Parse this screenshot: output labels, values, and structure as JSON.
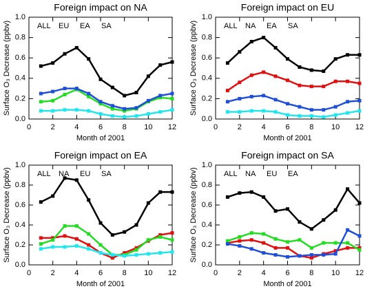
{
  "chart_data": [
    {
      "type": "line",
      "title": "Foreign impact on NA",
      "xlabel": "Month of 2001",
      "ylabel": "Surface O₃ Decrease (ppbv)",
      "x": [
        1,
        2,
        3,
        4,
        5,
        6,
        7,
        8,
        9,
        10,
        11,
        12
      ],
      "xlim": [
        0,
        12
      ],
      "xticks": [
        0,
        2,
        4,
        6,
        8,
        10,
        12
      ],
      "ylim": [
        0,
        1
      ],
      "yticks": [
        {
          "value": 0,
          "label": "0.0"
        },
        0.2,
        0.4,
        0.6,
        0.8,
        {
          "value": 1,
          "label": "1.0"
        }
      ],
      "series": [
        {
          "name": "ALL",
          "color": "#000000",
          "values": [
            0.52,
            0.55,
            0.64,
            0.7,
            0.59,
            0.39,
            0.31,
            0.23,
            0.26,
            0.42,
            0.53,
            0.56
          ]
        },
        {
          "name": "EU",
          "color": "#22dd22",
          "values": [
            0.17,
            0.18,
            0.24,
            0.29,
            0.22,
            0.15,
            0.1,
            0.08,
            0.1,
            0.17,
            0.21,
            0.2
          ]
        },
        {
          "name": "EA",
          "color": "#1f4fd6",
          "values": [
            0.25,
            0.27,
            0.3,
            0.3,
            0.25,
            0.17,
            0.13,
            0.1,
            0.11,
            0.18,
            0.23,
            0.25
          ]
        },
        {
          "name": "SA",
          "color": "#22e6ee",
          "values": [
            0.08,
            0.08,
            0.09,
            0.09,
            0.08,
            0.05,
            0.03,
            0.02,
            0.03,
            0.05,
            0.07,
            0.09
          ]
        }
      ]
    },
    {
      "type": "line",
      "title": "Foreign impact on EU",
      "xlabel": "Month of 2001",
      "ylabel": "Surface O₃ Decrease (ppbv)",
      "x": [
        1,
        2,
        3,
        4,
        5,
        6,
        7,
        8,
        9,
        10,
        11,
        12
      ],
      "xlim": [
        0,
        12
      ],
      "xticks": [
        0,
        2,
        4,
        6,
        8,
        10,
        12
      ],
      "ylim": [
        0,
        1
      ],
      "yticks": [
        {
          "value": 0,
          "label": "0.0"
        },
        0.2,
        0.4,
        0.6,
        0.8,
        {
          "value": 1,
          "label": "1.0"
        }
      ],
      "series": [
        {
          "name": "ALL",
          "color": "#000000",
          "values": [
            0.55,
            0.66,
            0.76,
            0.8,
            0.7,
            0.59,
            0.51,
            0.48,
            0.47,
            0.59,
            0.63,
            0.63
          ]
        },
        {
          "name": "NA",
          "color": "#e01010",
          "values": [
            0.28,
            0.36,
            0.43,
            0.46,
            0.42,
            0.38,
            0.33,
            0.32,
            0.32,
            0.37,
            0.37,
            0.35
          ]
        },
        {
          "name": "EA",
          "color": "#1f4fd6",
          "values": [
            0.17,
            0.2,
            0.22,
            0.23,
            0.19,
            0.15,
            0.12,
            0.09,
            0.09,
            0.12,
            0.17,
            0.18
          ]
        },
        {
          "name": "SA",
          "color": "#22e6ee",
          "values": [
            0.07,
            0.07,
            0.08,
            0.08,
            0.07,
            0.04,
            0.03,
            0.03,
            0.02,
            0.04,
            0.06,
            0.08
          ]
        }
      ]
    },
    {
      "type": "line",
      "title": "Foreign impact on EA",
      "xlabel": "Month of 2001",
      "ylabel": "Surface O₃ Decrease (ppbv)",
      "x": [
        1,
        2,
        3,
        4,
        5,
        6,
        7,
        8,
        9,
        10,
        11,
        12
      ],
      "xlim": [
        0,
        12
      ],
      "xticks": [
        0,
        2,
        4,
        6,
        8,
        10,
        12
      ],
      "ylim": [
        0,
        1
      ],
      "yticks": [
        {
          "value": 0,
          "label": "0.0"
        },
        0.2,
        0.4,
        0.6,
        0.8,
        {
          "value": 1,
          "label": "1.0"
        }
      ],
      "series": [
        {
          "name": "ALL",
          "color": "#000000",
          "values": [
            0.63,
            0.69,
            0.87,
            0.85,
            0.65,
            0.42,
            0.3,
            0.33,
            0.4,
            0.62,
            0.73,
            0.73
          ]
        },
        {
          "name": "NA",
          "color": "#e01010",
          "values": [
            0.27,
            0.27,
            0.29,
            0.26,
            0.2,
            0.12,
            0.07,
            0.12,
            0.17,
            0.24,
            0.3,
            0.32
          ]
        },
        {
          "name": "EU",
          "color": "#22dd22",
          "values": [
            0.21,
            0.25,
            0.39,
            0.39,
            0.31,
            0.2,
            0.1,
            0.1,
            0.15,
            0.25,
            0.28,
            0.25
          ]
        },
        {
          "name": "SA",
          "color": "#22e6ee",
          "values": [
            0.16,
            0.18,
            0.18,
            0.19,
            0.16,
            0.12,
            0.1,
            0.09,
            0.1,
            0.11,
            0.12,
            0.13
          ]
        }
      ]
    },
    {
      "type": "line",
      "title": "Foreign impact on SA",
      "xlabel": "Month of 2001",
      "ylabel": "Surface O₃ Decrease (ppbv)",
      "x": [
        1,
        2,
        3,
        4,
        5,
        6,
        7,
        8,
        9,
        10,
        11,
        12
      ],
      "xlim": [
        0,
        12
      ],
      "xticks": [
        0,
        2,
        4,
        6,
        8,
        10,
        12
      ],
      "ylim": [
        0,
        1
      ],
      "yticks": [
        {
          "value": 0,
          "label": "0.0"
        },
        0.2,
        0.4,
        0.6,
        0.8,
        {
          "value": 1,
          "label": "1.0"
        }
      ],
      "series": [
        {
          "name": "ALL",
          "color": "#000000",
          "values": [
            0.68,
            0.72,
            0.73,
            0.68,
            0.54,
            0.56,
            0.43,
            0.36,
            0.45,
            0.55,
            0.76,
            0.62
          ]
        },
        {
          "name": "NA",
          "color": "#e01010",
          "values": [
            0.22,
            0.24,
            0.25,
            0.22,
            0.17,
            0.17,
            0.09,
            0.07,
            0.11,
            0.14,
            0.17,
            0.17
          ]
        },
        {
          "name": "EU",
          "color": "#22dd22",
          "values": [
            0.24,
            0.28,
            0.32,
            0.31,
            0.26,
            0.23,
            0.25,
            0.17,
            0.22,
            0.22,
            0.22,
            0.15
          ]
        },
        {
          "name": "EA",
          "color": "#1f4fd6",
          "values": [
            0.21,
            0.19,
            0.16,
            0.12,
            0.1,
            0.08,
            0.09,
            0.1,
            0.1,
            0.11,
            0.35,
            0.29
          ]
        }
      ]
    }
  ]
}
